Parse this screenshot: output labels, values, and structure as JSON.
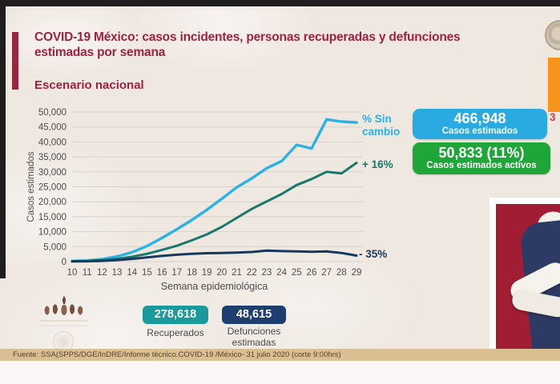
{
  "header": {
    "title": "COVID-19 México: casos incidentes, personas recuperadas y defunciones estimadas por semana",
    "subtitle": "Escenario nacional"
  },
  "chart_data": {
    "type": "line",
    "xlabel": "Semana epidemiológica",
    "ylabel": "Casos estimados",
    "x": [
      10,
      11,
      12,
      13,
      14,
      15,
      16,
      17,
      18,
      19,
      20,
      21,
      22,
      23,
      24,
      25,
      26,
      27,
      28,
      29
    ],
    "ylim": [
      0,
      50000
    ],
    "ytick_step": 5000,
    "yticks": [
      "0",
      "5,000",
      "10,000",
      "15,000",
      "20,000",
      "25,000",
      "30,000",
      "35,000",
      "40,000",
      "45,000",
      "50,000"
    ],
    "grid": true,
    "legend_position": "right-annotations",
    "series": [
      {
        "name": "Casos incidentes estimados",
        "color": "#29b2e5",
        "annotation": "% Sin cambio",
        "values": [
          200,
          350,
          800,
          1700,
          3100,
          5200,
          7900,
          10800,
          13900,
          17300,
          21000,
          24800,
          27800,
          31200,
          33600,
          39000,
          37800,
          47500,
          46800,
          46500
        ]
      },
      {
        "name": "Personas recuperadas estimadas",
        "color": "#17786b",
        "annotation": "+ 16%",
        "values": [
          100,
          200,
          450,
          900,
          1600,
          2600,
          3900,
          5300,
          7100,
          9100,
          11600,
          14600,
          17600,
          20100,
          22600,
          25600,
          27600,
          30000,
          29500,
          33000
        ]
      },
      {
        "name": "Defunciones estimadas",
        "color": "#17395e",
        "annotation": "- 35%",
        "values": [
          50,
          120,
          250,
          500,
          900,
          1400,
          1900,
          2300,
          2600,
          2800,
          2900,
          3000,
          3200,
          3700,
          3500,
          3400,
          3300,
          3400,
          2900,
          2000
        ]
      }
    ]
  },
  "stats": {
    "estimated": {
      "value": "466,948",
      "label": "Casos estimados",
      "color": "#29abe2"
    },
    "active": {
      "value": "50,833 (11%)",
      "label": "Casos estimados activos",
      "color": "#1fa638"
    },
    "recovered": {
      "value": "278,618",
      "label": "Recuperados",
      "color": "#1a9a9b"
    },
    "deaths": {
      "value": "48,615",
      "label": "Defunciones estimadas",
      "color": "#1d3e6e"
    }
  },
  "side": {
    "partial_number": "3"
  },
  "footer": {
    "source": "Fuente: SSA(SPPS/DGE/InDRE/Informe técnico.COVID-19 /México- 31 julio 2020 (corte 9:00hrs)"
  }
}
